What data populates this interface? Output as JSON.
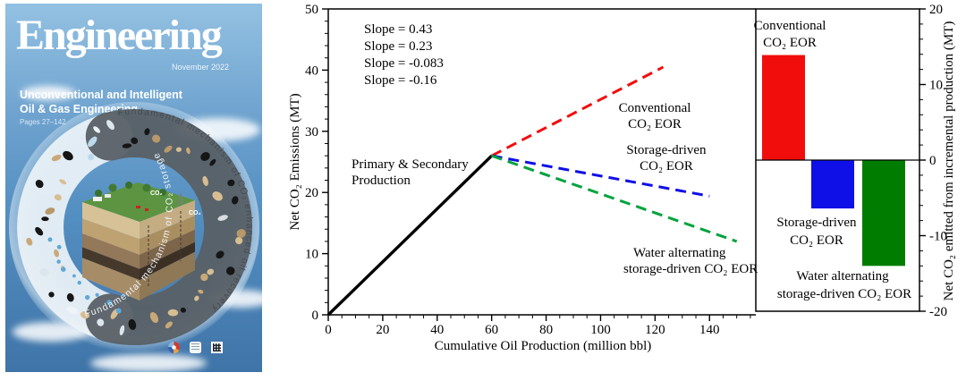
{
  "cover": {
    "journal_title": "Engineering",
    "issue_date": "November 2022",
    "theme_line1": "Unconventional and Intelligent",
    "theme_line2": "Oil & Gas Engineering",
    "pages_label": "Pages 27–142",
    "arc_text_left": "Fundamental mechanism of CO₂ storage",
    "arc_text_right": "Fundamental mechanism of CO₂ enhanced oil recovery",
    "co2_label": "CO₂",
    "logos": [
      "color-wheel-icon",
      "publisher-emblem-icon",
      "qr-code-icon"
    ],
    "colors": {
      "sky_top": "#93c1e2",
      "sky_bottom": "#3f74a8"
    }
  },
  "chart_data": [
    {
      "type": "line",
      "xlabel": "Cumulative Oil Production (million bbl)",
      "ylabel": "Net CO₂ Emissions (MT)",
      "xlim": [
        0,
        157
      ],
      "ylim": [
        0,
        50
      ],
      "x_ticks": [
        0,
        20,
        40,
        60,
        80,
        100,
        120,
        140
      ],
      "y_ticks": [
        0,
        10,
        20,
        30,
        40,
        50
      ],
      "x_minor_step": 5,
      "y_minor_step": 2,
      "grid": false,
      "series": [
        {
          "name": "Primary & Secondary Production",
          "slope_label": "Slope = 0.43",
          "color": "#000000",
          "dash": false,
          "points": [
            [
              0,
              0
            ],
            [
              60,
              26
            ]
          ]
        },
        {
          "name": "Conventional CO₂ EOR",
          "slope_label": "Slope = 0.23",
          "color": "#f20d0d",
          "dash": true,
          "points": [
            [
              60,
              26
            ],
            [
              123,
              40.5
            ]
          ]
        },
        {
          "name": "Storage-driven CO₂ EOR",
          "slope_label": "Slope = -0.083",
          "color": "#0f0fe8",
          "dash": true,
          "points": [
            [
              60,
              26
            ],
            [
              140,
              19.4
            ]
          ]
        },
        {
          "name": "Water alternating storage-driven CO₂ EOR",
          "slope_label": "Slope = -0.16",
          "color": "#00a33e",
          "dash": true,
          "points": [
            [
              60,
              26
            ],
            [
              150,
              12
            ]
          ]
        }
      ],
      "annotations": [
        {
          "lines": [
            "Primary & Secondary",
            "Production"
          ],
          "color": "#000000"
        },
        {
          "lines": [
            "Conventional",
            "CO₂ EOR"
          ],
          "color": "#f20d0d"
        },
        {
          "lines": [
            "Storage-driven",
            "CO₂ EOR"
          ],
          "color": "#0f0fe8"
        },
        {
          "lines": [
            "Water alternating",
            "storage-driven CO₂ EOR"
          ],
          "color": "#00a33e"
        }
      ]
    },
    {
      "type": "bar",
      "ylabel": "Net CO₂ emitted from incremental production (MT)",
      "ylim": [
        -20,
        20
      ],
      "y_ticks": [
        -20,
        -10,
        0,
        10,
        20
      ],
      "y_minor_step": 2,
      "categories": [
        "Conventional CO₂ EOR",
        "Storage-driven CO₂ EOR",
        "Water alternating storage-driven CO₂ EOR"
      ],
      "values": [
        13.9,
        -6.4,
        -14
      ],
      "colors": [
        "#f20d0d",
        "#0f0fe8",
        "#007d00"
      ],
      "bar_labels": [
        {
          "lines": [
            "Conventional",
            "CO₂ EOR"
          ],
          "color": "#f20d0d"
        },
        {
          "lines": [
            "Storage-driven",
            "CO₂ EOR"
          ],
          "color": "#0f0fe8"
        },
        {
          "lines": [
            "Water alternating",
            "storage-driven CO₂ EOR"
          ],
          "color": "#009933"
        }
      ]
    }
  ]
}
